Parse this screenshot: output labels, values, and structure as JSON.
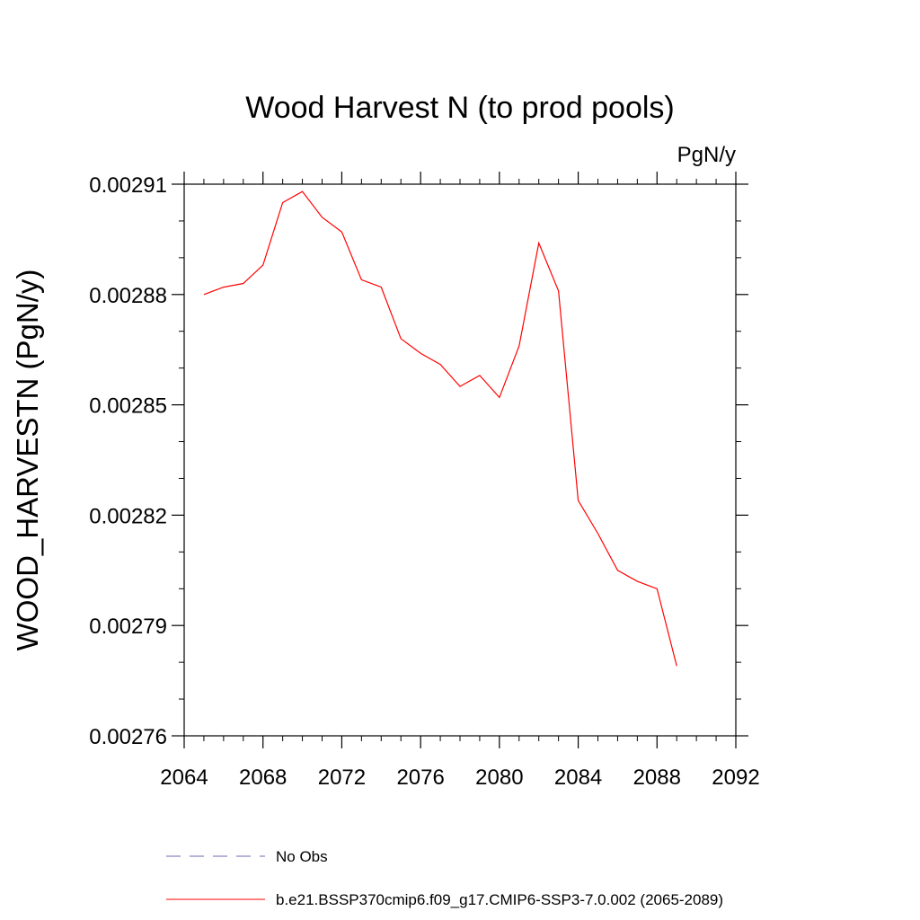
{
  "chart_data": {
    "type": "line",
    "title": "Wood Harvest N (to prod pools)",
    "units_label": "PgN/y",
    "ylabel": "WOOD_HARVESTN  (PgN/y)",
    "xlabel": "",
    "xlim": [
      2064,
      2092
    ],
    "ylim": [
      0.00276,
      0.00291
    ],
    "x_ticks": [
      2064,
      2068,
      2072,
      2076,
      2080,
      2084,
      2088,
      2092
    ],
    "x_tick_labels": [
      "2064",
      "2068",
      "2072",
      "2076",
      "2080",
      "2084",
      "2088",
      "2092"
    ],
    "y_ticks": [
      0.00276,
      0.00279,
      0.00282,
      0.00285,
      0.00288,
      0.00291
    ],
    "y_tick_labels": [
      "0.00276",
      "0.00279",
      "0.00282",
      "0.00285",
      "0.00288",
      "0.00291"
    ],
    "grid": false,
    "legend_placement": "bottom",
    "series": [
      {
        "name": "No Obs",
        "color": "#6a6ab0",
        "dash": "dashed",
        "x": [],
        "y": []
      },
      {
        "name": "b.e21.BSSP370cmip6.f09_g17.CMIP6-SSP3-7.0.002 (2065-2089)",
        "color": "#ff0000",
        "dash": "solid",
        "x": [
          2065,
          2066,
          2067,
          2068,
          2069,
          2070,
          2071,
          2072,
          2073,
          2074,
          2075,
          2076,
          2077,
          2078,
          2079,
          2080,
          2081,
          2082,
          2083,
          2084,
          2085,
          2086,
          2087,
          2088,
          2089
        ],
        "y": [
          0.00288,
          0.002882,
          0.002883,
          0.002888,
          0.002905,
          0.002908,
          0.002901,
          0.002897,
          0.002884,
          0.002882,
          0.002868,
          0.002864,
          0.002861,
          0.002855,
          0.002858,
          0.002852,
          0.002866,
          0.002894,
          0.002881,
          0.002824,
          0.002815,
          0.002805,
          0.002802,
          0.0028,
          0.002779
        ]
      }
    ]
  }
}
